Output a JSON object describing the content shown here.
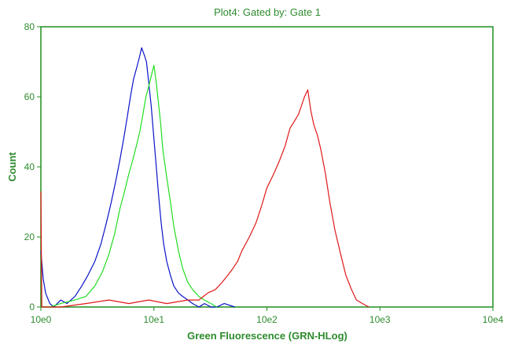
{
  "chart_data": {
    "type": "line",
    "title": "Plot4:  Gated by: Gate 1",
    "xlabel": "Green Fluorescence (GRN-HLog)",
    "ylabel": "Count",
    "x_scale": "log",
    "xlim": [
      1,
      10000
    ],
    "ylim": [
      0,
      80
    ],
    "x_ticks": [
      "10e0",
      "10e1",
      "10e2",
      "10e3",
      "10e4"
    ],
    "y_ticks": [
      "0",
      "20",
      "40",
      "60",
      "80"
    ],
    "grid": false,
    "legend": "none",
    "colors": {
      "text": "#2e8b2e",
      "axis": "#1f8f1f",
      "series": [
        "#0a14c8",
        "#22dd22",
        "#e01818"
      ]
    },
    "series": [
      {
        "color": "#0a14c8",
        "x": [
          1.0,
          1.05,
          1.1,
          1.2,
          1.3,
          1.5,
          1.7,
          2.0,
          2.3,
          2.6,
          3.0,
          3.4,
          3.8,
          4.2,
          4.6,
          5.0,
          5.4,
          5.8,
          6.2,
          6.6,
          7.0,
          7.4,
          7.8,
          8.2,
          8.6,
          9.0,
          9.5,
          10.0,
          10.5,
          11.0,
          11.6,
          12.2,
          13.0,
          14.0,
          15.0,
          16.5,
          18.0,
          20.0,
          22.0,
          25.0,
          28.0,
          32.0,
          36.0,
          42.0,
          52.0
        ],
        "y": [
          16,
          8,
          4,
          1,
          0,
          2,
          1,
          3,
          6,
          9,
          13,
          18,
          24,
          30,
          36,
          42,
          48,
          54,
          60,
          65,
          68,
          71,
          74,
          72,
          70,
          64,
          57,
          48,
          40,
          32,
          24,
          18,
          13,
          9,
          6,
          4,
          3,
          2,
          1,
          0,
          1,
          0,
          0,
          1,
          0
        ]
      },
      {
        "color": "#22dd22",
        "x": [
          1.0,
          1.2,
          1.5,
          2.0,
          2.5,
          3.0,
          3.5,
          4.0,
          4.5,
          5.0,
          5.5,
          6.0,
          6.5,
          7.0,
          7.5,
          8.0,
          8.5,
          9.0,
          9.5,
          10.0,
          10.5,
          11.0,
          11.5,
          12.0,
          13.0,
          14.0,
          15.0,
          16.5,
          18.0,
          20.0,
          22.0,
          25.0,
          28.0,
          32.0,
          36.0
        ],
        "y": [
          0,
          0,
          1,
          2,
          3,
          6,
          10,
          15,
          21,
          28,
          33,
          38,
          42,
          46,
          50,
          55,
          60,
          63,
          66,
          69,
          64,
          58,
          52,
          45,
          37,
          30,
          23,
          16,
          11,
          7,
          5,
          3,
          2,
          1,
          0
        ]
      },
      {
        "color": "#e01818",
        "x": [
          1.0,
          1.02,
          1.5,
          2.5,
          4.0,
          6.0,
          9.0,
          13.0,
          20.0,
          25.0,
          30.0,
          35.0,
          40.0,
          45.0,
          50.0,
          55.0,
          60.0,
          70.0,
          80.0,
          90.0,
          100.0,
          115.0,
          130.0,
          145.0,
          160.0,
          175.0,
          190.0,
          200.0,
          215.0,
          230.0,
          245.0,
          260.0,
          280.0,
          300.0,
          330.0,
          360.0,
          400.0,
          450.0,
          500.0,
          560.0,
          620.0,
          700.0,
          800.0
        ],
        "y": [
          33,
          0,
          0,
          1,
          2,
          1,
          2,
          1,
          2,
          2,
          4,
          5,
          7,
          9,
          11,
          13,
          16,
          20,
          24,
          29,
          34,
          38,
          42,
          46,
          51,
          53,
          55,
          57,
          60,
          62,
          56,
          52,
          49,
          45,
          38,
          30,
          22,
          15,
          9,
          5,
          2,
          1,
          0
        ]
      }
    ]
  }
}
